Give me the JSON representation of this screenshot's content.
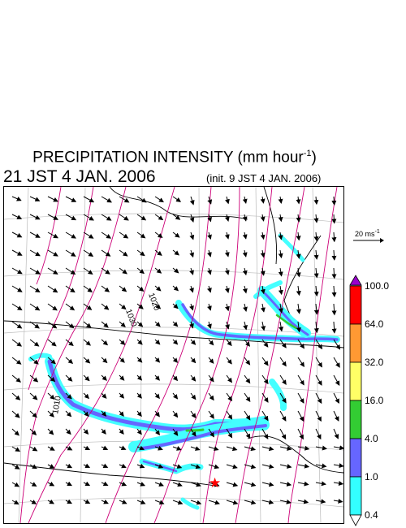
{
  "title": {
    "main": "PRECIPITATION INTENSITY (mm hour",
    "unit_exponent": "-1",
    "close": ")"
  },
  "valid_time": "21 JST 4 JAN. 2006",
  "init_time": "(init. 9 JST 4 JAN. 2006)",
  "reference_vector": {
    "label": "20 ms",
    "exponent": "-1"
  },
  "contour_labels": [
    "1020",
    "1030",
    "1010"
  ],
  "colorbar": {
    "levels": [
      "100.0",
      "64.0",
      "32.0",
      "16.0",
      "4.0",
      "1.0",
      "0.4"
    ],
    "colors": [
      "#9900cc",
      "#ff0000",
      "#ff9933",
      "#ffff66",
      "#33cc33",
      "#6666ff",
      "#33ffff",
      "#ffffff"
    ]
  },
  "marker_color": "#ff0000",
  "isobar_color": "#cc0077",
  "precip_colors": {
    "light": "#44ffff",
    "moderate": "#6666ff",
    "heavy": "#33cc33"
  }
}
